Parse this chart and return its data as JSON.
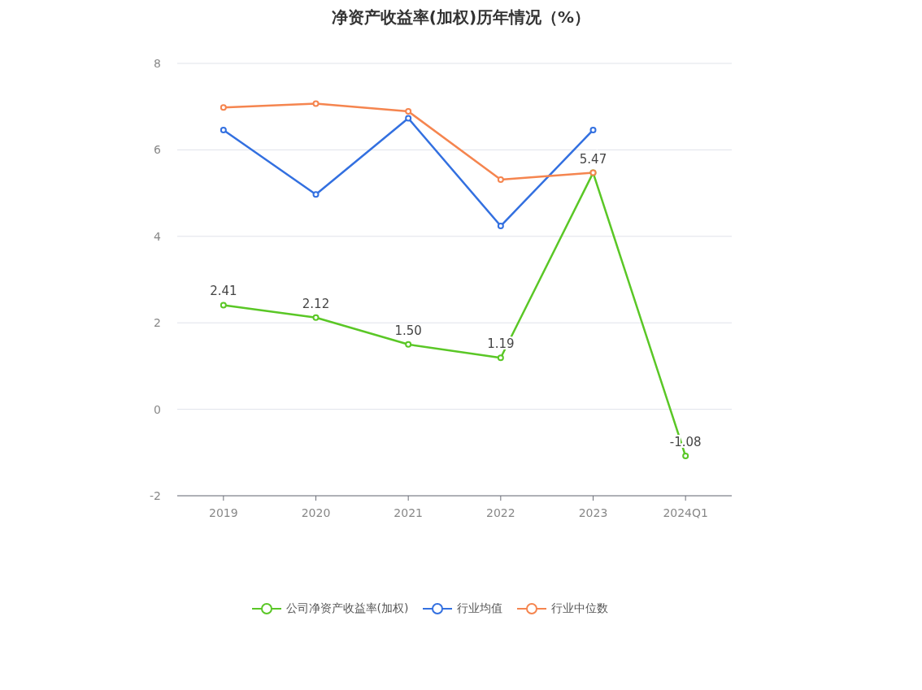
{
  "chart_data": {
    "type": "line",
    "title": "净资产收益率(加权)历年情况（%）",
    "categories": [
      "2019",
      "2020",
      "2021",
      "2022",
      "2023",
      "2024Q1"
    ],
    "series": [
      {
        "name": "公司净资产收益率(加权)",
        "color": "#5ac726",
        "values": [
          2.41,
          2.12,
          1.5,
          1.19,
          5.47,
          -1.08
        ],
        "value_labels": [
          "2.41",
          "2.12",
          "1.50",
          "1.19",
          "5.47",
          "-1.08"
        ]
      },
      {
        "name": "行业均值",
        "color": "#3370e0",
        "values": [
          6.46,
          4.97,
          6.73,
          4.24,
          6.46,
          null
        ]
      },
      {
        "name": "行业中位数",
        "color": "#f5854f",
        "values": [
          6.98,
          7.07,
          6.89,
          5.31,
          5.47,
          null
        ]
      }
    ],
    "ylim": [
      -2,
      8
    ],
    "yticks": [
      -2,
      0,
      2,
      4,
      6,
      8
    ],
    "grid": "y",
    "legend": "bottom",
    "marker": "circle",
    "line_style": "solid"
  }
}
